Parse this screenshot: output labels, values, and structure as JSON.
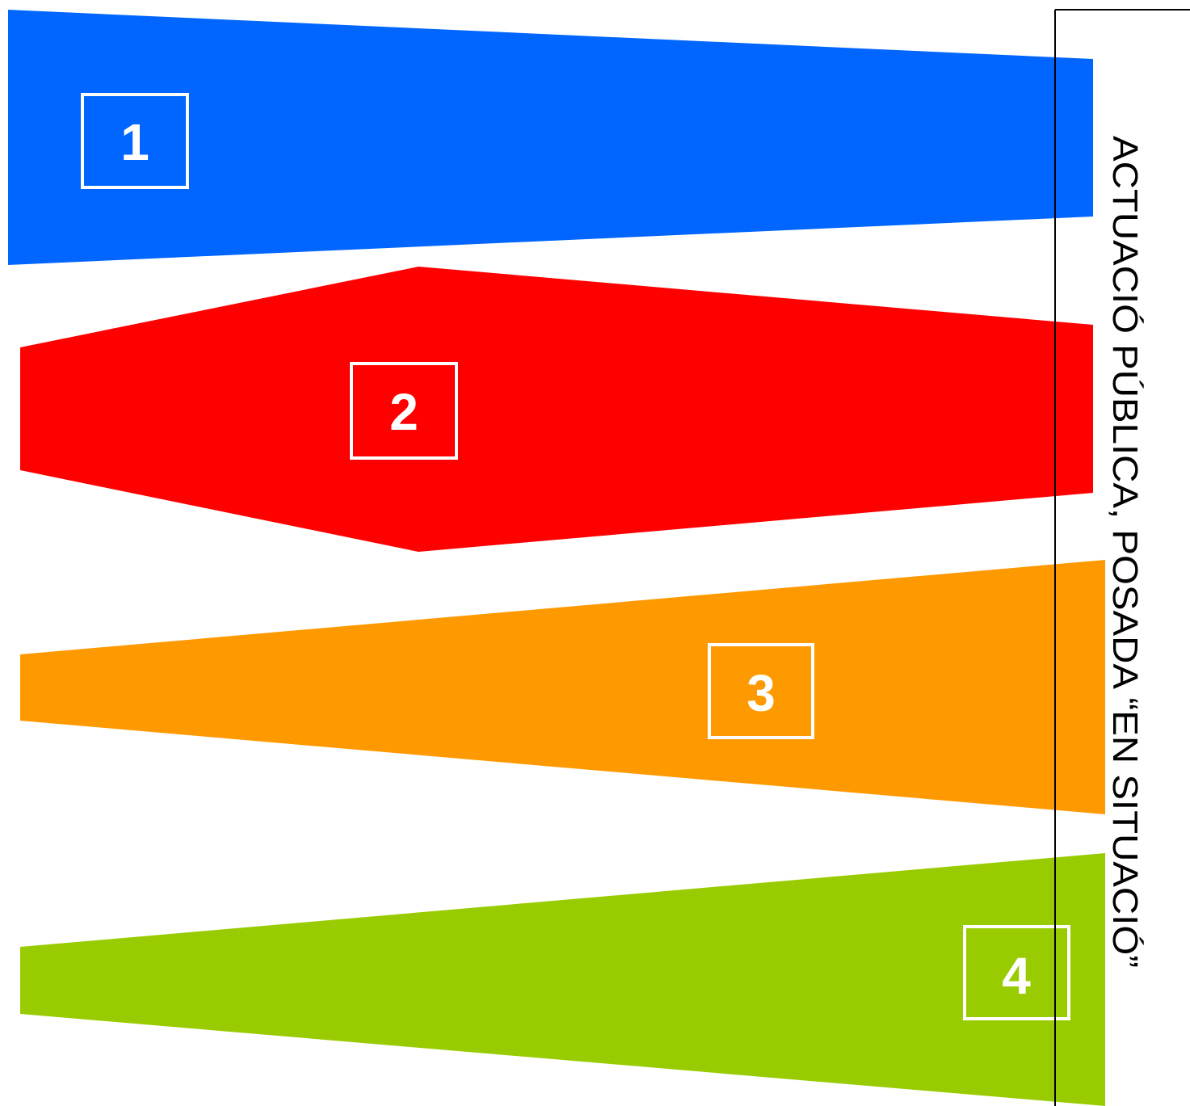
{
  "caption": "ACTUACIÓ PÚBLICA, POSADA “EN SITUACIÓ”",
  "shapes": [
    {
      "label": "1",
      "color": "#0066FF",
      "label_color": "#FFFFFF"
    },
    {
      "label": "2",
      "color": "#FF0000",
      "label_color": "#FFFFFF"
    },
    {
      "label": "3",
      "color": "#FF9900",
      "label_color": "#FFFFFF"
    },
    {
      "label": "4",
      "color": "#99CC00",
      "label_color": "#FFFFFF"
    }
  ],
  "frame_color": "#000000"
}
